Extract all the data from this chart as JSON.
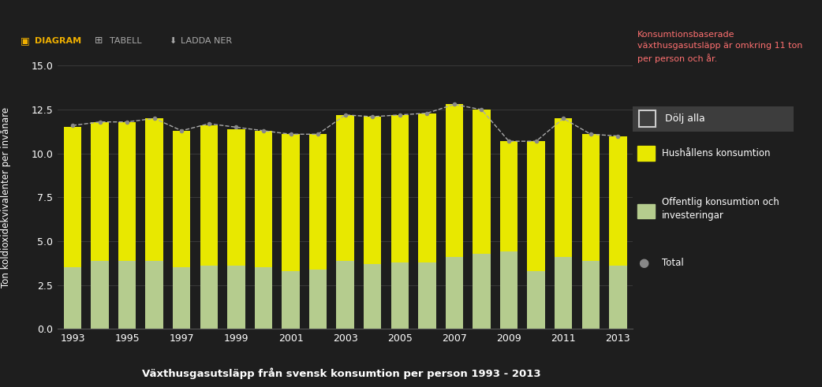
{
  "years": [
    1993,
    1994,
    1995,
    1996,
    1997,
    1998,
    1999,
    2000,
    2001,
    2002,
    2003,
    2004,
    2005,
    2006,
    2007,
    2008,
    2009,
    2010,
    2011,
    2012,
    2013
  ],
  "offentlig": [
    3.5,
    3.9,
    3.9,
    3.9,
    3.5,
    3.6,
    3.6,
    3.5,
    3.3,
    3.4,
    3.9,
    3.7,
    3.8,
    3.8,
    4.1,
    4.3,
    4.4,
    3.3,
    4.1,
    3.9,
    3.6
  ],
  "hushall": [
    8.0,
    7.9,
    7.9,
    8.1,
    7.8,
    8.0,
    7.8,
    7.8,
    7.8,
    7.7,
    8.3,
    8.4,
    8.4,
    8.5,
    8.7,
    8.2,
    6.3,
    7.4,
    7.9,
    7.2,
    7.4
  ],
  "total": [
    11.6,
    11.8,
    11.8,
    12.0,
    11.3,
    11.7,
    11.5,
    11.3,
    11.1,
    11.1,
    12.2,
    12.1,
    12.2,
    12.3,
    12.8,
    12.5,
    10.7,
    10.7,
    12.0,
    11.1,
    11.0
  ],
  "bar_color_offentlig": "#b5cc8e",
  "bar_color_hushall": "#e8e800",
  "total_line_color": "#aaaaaa",
  "background_color": "#1e1e1e",
  "plot_bg_color": "#1e1e1e",
  "grid_color": "#3a3a3a",
  "text_color": "#ffffff",
  "ylabel": "Ton koldioxidekvivalenter per invånare",
  "xlabel_title": "Växthusgasutsläpp från svensk konsumtion per person 1993 - 2013",
  "ylim": [
    0,
    15
  ],
  "yticks": [
    0,
    2.5,
    5,
    7.5,
    10,
    12.5,
    15
  ],
  "legend_hushall": "Hushållens konsumtion",
  "legend_offentlig": "Offentlig konsumtion och\ninvesteringar",
  "legend_total": "Total",
  "annotation_text": "Konsumtionsbaserade\nväxthusgasutsläpp är omkring 11 ton\nper person och år.",
  "dolj_alla": "Dölj alla",
  "toolbar_diagram": "DIAGRAM",
  "toolbar_tabell": "TABELL",
  "toolbar_ladda": "LADDA NER"
}
